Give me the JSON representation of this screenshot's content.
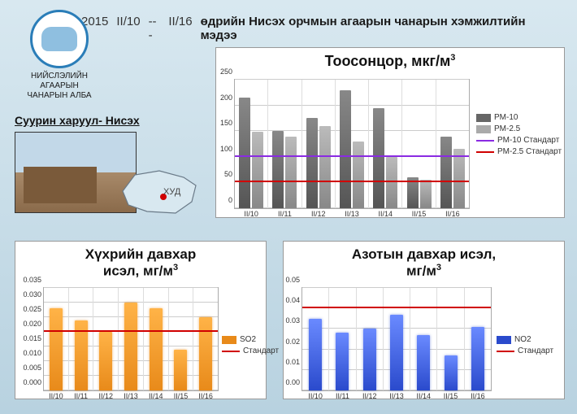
{
  "header": {
    "year": "2015",
    "date_from": "II/10",
    "date_separator": "---",
    "date_to": "II/16",
    "title": "өдрийн Нисэх орчмын агаарын чанарын хэмжилтийн мэдээ"
  },
  "org": {
    "name_line1": "НИЙСЛЭЛИЙН АГААРЫН",
    "name_line2": "ЧАНАРЫН АЛБА"
  },
  "station": {
    "title": "Суурин харуул- Нисэх",
    "district_label": "ХУД"
  },
  "categories": [
    "II/10",
    "II/11",
    "II/12",
    "II/13",
    "II/14",
    "II/15",
    "II/16"
  ],
  "pm_chart": {
    "title": "Тоосонцор, мкг/м",
    "title_sup": "3",
    "ylim": [
      0,
      250
    ],
    "ytick_step": 50,
    "pm10": [
      215,
      150,
      175,
      230,
      195,
      60,
      140
    ],
    "pm25": [
      148,
      140,
      160,
      130,
      100,
      55,
      115
    ],
    "pm10_std": 100,
    "pm10_std_color": "#8a2be2",
    "pm25_std": 50,
    "pm25_std_color": "#d00000",
    "pm10_color": "#666666",
    "pm25_color": "#aaaaaa",
    "legend": {
      "pm10": "PM-10",
      "pm25": "PM-2.5",
      "pm10_std": "PM-10 Стандарт",
      "pm25_std": "PM-2.5 Стандарт"
    }
  },
  "so2_chart": {
    "title_line1": "Хүхрийн давхар",
    "title_line2": "исэл, мг/м",
    "title_sup": "3",
    "ylim": [
      0,
      0.035
    ],
    "ytick_step": 0.005,
    "values": [
      0.028,
      0.024,
      0.02,
      0.03,
      0.028,
      0.014,
      0.025
    ],
    "std": 0.02,
    "std_color": "#d00000",
    "bar_color": "#e88a1a",
    "legend": {
      "series": "SO2",
      "std": "Стандарт"
    }
  },
  "no2_chart": {
    "title_line1": "Азотын давхар исэл,",
    "title_line2": "мг/м",
    "title_sup": "3",
    "ylim": [
      0,
      0.05
    ],
    "ytick_step": 0.01,
    "values": [
      0.035,
      0.028,
      0.03,
      0.037,
      0.027,
      0.017,
      0.031
    ],
    "std": 0.04,
    "std_color": "#d00000",
    "bar_color": "#2a4acc",
    "legend": {
      "series": "NO2",
      "std": "Стандарт"
    }
  },
  "colors": {
    "page_bg_top": "#d8e8f0",
    "page_bg_bottom": "#b8d2e0",
    "panel_bg": "#ffffff",
    "grid": "#cccccc",
    "axis_text": "#333333"
  }
}
